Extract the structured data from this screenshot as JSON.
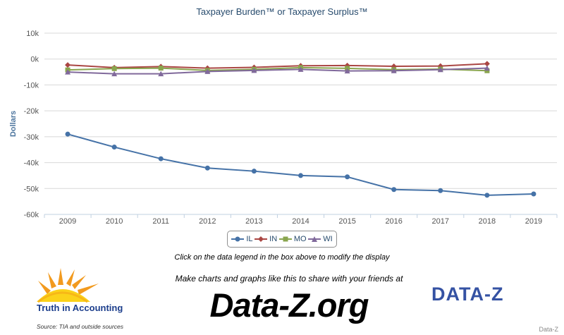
{
  "chart_data": {
    "type": "line",
    "title": "Taxpayer Burden™ or Taxpayer Surplus™",
    "ylabel": "Dollars",
    "xlabel": "",
    "categories": [
      "2009",
      "2010",
      "2011",
      "2012",
      "2013",
      "2014",
      "2015",
      "2016",
      "2017",
      "2018",
      "2019"
    ],
    "ylim": [
      -60000,
      10000
    ],
    "yticks": [
      10000,
      0,
      -10000,
      -20000,
      -30000,
      -40000,
      -50000,
      -60000
    ],
    "ytick_labels": [
      "10k",
      "0k",
      "-10k",
      "-20k",
      "-30k",
      "-40k",
      "-50k",
      "-60k"
    ],
    "grid": true,
    "legend_position": "bottom-center",
    "series": [
      {
        "name": "IL",
        "color": "#4572a7",
        "marker": "circle",
        "values": [
          -29000,
          -34000,
          -38500,
          -42100,
          -43300,
          -45000,
          -45500,
          -50400,
          -50800,
          -52600,
          -52100
        ]
      },
      {
        "name": "IN",
        "color": "#aa4643",
        "marker": "diamond",
        "values": [
          -2300,
          -3300,
          -2900,
          -3500,
          -3200,
          -2600,
          -2500,
          -2800,
          -2700,
          -1800,
          null
        ]
      },
      {
        "name": "MO",
        "color": "#89a54e",
        "marker": "square",
        "values": [
          -4200,
          -3700,
          -3500,
          -4400,
          -4000,
          -3300,
          -3600,
          -4100,
          -3900,
          -4500,
          null
        ]
      },
      {
        "name": "WI",
        "color": "#80699b",
        "marker": "triangle",
        "values": [
          -5000,
          -5700,
          -5700,
          -4800,
          -4400,
          -4000,
          -4600,
          -4500,
          -4100,
          -3500,
          null
        ]
      }
    ]
  },
  "footer": {
    "hint": "Click on the data legend in the box above to modify the display",
    "promo": "Make charts and graphs like this to share with your friends at",
    "site": "Data-Z.org",
    "tia_name": "Truth in Accounting",
    "source": "Source: TIA and outside sources",
    "dz_logo": "DATA-Z",
    "credit": "Data-Z"
  }
}
